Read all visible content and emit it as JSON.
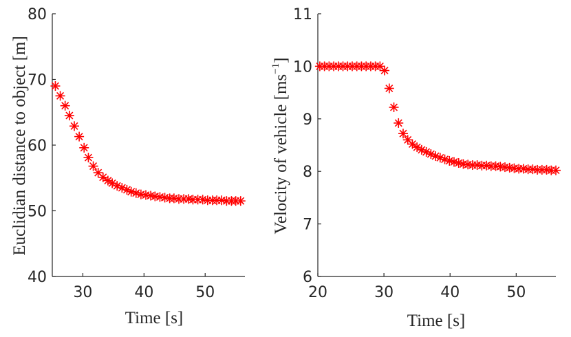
{
  "chart_data": [
    {
      "type": "scatter",
      "title": "",
      "xlabel": "Time [s]",
      "ylabel": "Euclidian distance to object [m]",
      "xlim": [
        25,
        56.5
      ],
      "ylim": [
        40,
        80
      ],
      "xticks": [
        30,
        40,
        50
      ],
      "yticks": [
        40,
        50,
        60,
        70,
        80
      ],
      "grid": false,
      "marker": "asterisk",
      "color": "#ff0000",
      "x": [
        25.5,
        26.3,
        27.1,
        27.8,
        28.6,
        29.4,
        30.2,
        30.9,
        31.7,
        32.5,
        33.3,
        34.1,
        34.8,
        35.6,
        36.4,
        37.2,
        37.9,
        38.7,
        39.5,
        40.3,
        41.1,
        41.8,
        42.6,
        43.4,
        44.2,
        44.9,
        45.7,
        46.5,
        47.3,
        48.0,
        48.8,
        49.6,
        50.4,
        51.2,
        51.9,
        52.7,
        53.5,
        54.3,
        55.0,
        55.8
      ],
      "y": [
        69.0,
        67.5,
        66.0,
        64.5,
        62.9,
        61.3,
        59.6,
        58.1,
        56.8,
        55.8,
        55.1,
        54.6,
        54.2,
        53.8,
        53.5,
        53.2,
        52.9,
        52.7,
        52.5,
        52.4,
        52.3,
        52.2,
        52.1,
        52.0,
        51.9,
        51.9,
        51.8,
        51.8,
        51.8,
        51.7,
        51.7,
        51.7,
        51.6,
        51.6,
        51.6,
        51.6,
        51.5,
        51.5,
        51.5,
        51.5
      ]
    },
    {
      "type": "scatter",
      "title": "",
      "xlabel": "Time [s]",
      "ylabel_main": "Velocity of vehicle [ms",
      "ylabel_sup": "−1",
      "ylabel_end": "]",
      "xlim": [
        20,
        56
      ],
      "ylim": [
        6,
        11
      ],
      "xticks": [
        20,
        30,
        40,
        50
      ],
      "yticks": [
        6,
        7,
        8,
        9,
        10,
        11
      ],
      "grid": false,
      "marker": "asterisk",
      "color": "#ff0000",
      "x": [
        20.3,
        21.0,
        21.7,
        22.4,
        23.1,
        23.8,
        24.5,
        25.2,
        25.9,
        26.6,
        27.3,
        28.0,
        28.7,
        29.4,
        30.1,
        30.8,
        31.5,
        32.2,
        32.9,
        33.6,
        34.3,
        35.0,
        35.7,
        36.4,
        37.1,
        37.8,
        38.5,
        39.2,
        39.9,
        40.6,
        41.3,
        42.0,
        42.7,
        43.4,
        44.1,
        44.8,
        45.5,
        46.2,
        46.9,
        47.6,
        48.3,
        49.0,
        49.7,
        50.4,
        51.1,
        51.8,
        52.5,
        53.2,
        53.9,
        54.6,
        55.3,
        56.0
      ],
      "y": [
        10.0,
        10.0,
        10.0,
        10.0,
        10.0,
        10.0,
        10.0,
        10.0,
        10.0,
        10.0,
        10.0,
        10.0,
        10.0,
        10.0,
        9.92,
        9.58,
        9.22,
        8.92,
        8.72,
        8.6,
        8.52,
        8.46,
        8.41,
        8.37,
        8.33,
        8.29,
        8.26,
        8.23,
        8.2,
        8.18,
        8.16,
        8.14,
        8.13,
        8.12,
        8.12,
        8.11,
        8.11,
        8.1,
        8.1,
        8.09,
        8.08,
        8.07,
        8.06,
        8.05,
        8.05,
        8.04,
        8.04,
        8.03,
        8.03,
        8.03,
        8.02,
        8.02
      ]
    }
  ]
}
